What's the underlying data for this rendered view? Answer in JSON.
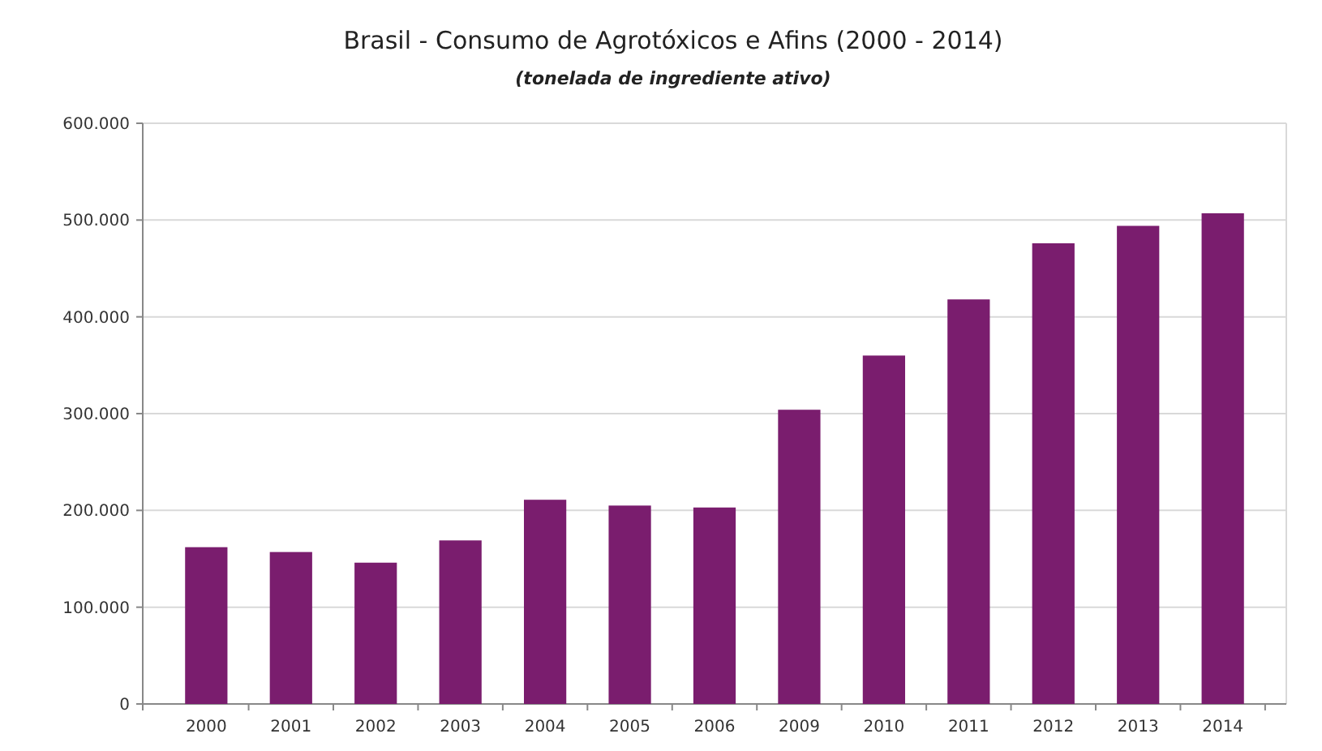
{
  "chart_data": {
    "type": "bar",
    "title": "Brasil - Consumo de Agrotóxicos e Afins (2000 - 2014)",
    "subtitle": "(tonelada de ingrediente ativo)",
    "categories": [
      "2000",
      "2001",
      "2002",
      "2003",
      "2004",
      "2005",
      "2006",
      "2009",
      "2010",
      "2011",
      "2012",
      "2013",
      "2014"
    ],
    "values": [
      162000,
      157000,
      146000,
      169000,
      211000,
      205000,
      203000,
      304000,
      360000,
      418000,
      476000,
      494000,
      507000
    ],
    "color": "#7a1d6e",
    "ylim": [
      0,
      600000
    ],
    "yticks": [
      {
        "value": 0,
        "label": "0"
      },
      {
        "value": 100000,
        "label": "100.000"
      },
      {
        "value": 200000,
        "label": "200.000"
      },
      {
        "value": 300000,
        "label": "300.000"
      },
      {
        "value": 400000,
        "label": "400.000"
      },
      {
        "value": 500000,
        "label": "500.000"
      },
      {
        "value": 600000,
        "label": "600.000"
      }
    ],
    "grid": "y"
  }
}
